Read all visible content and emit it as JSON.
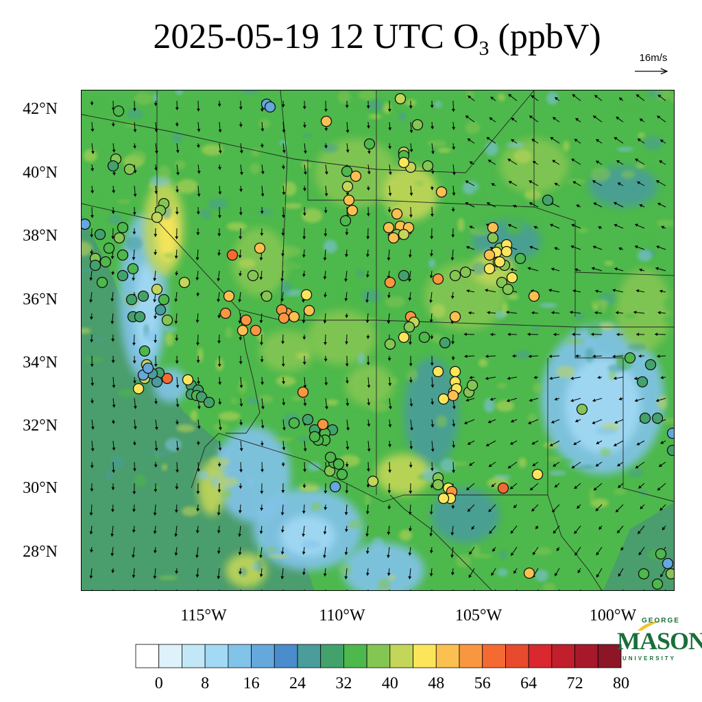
{
  "title": {
    "date_time": "2025-05-19 12 UTC O",
    "sub": "3",
    "units": " (ppbV)"
  },
  "wind_reference": {
    "label": "16m/s"
  },
  "axes": {
    "lat_labels": [
      "42°N",
      "40°N",
      "38°N",
      "36°N",
      "34°N",
      "32°N",
      "30°N",
      "28°N"
    ],
    "lon_labels": [
      "115°W",
      "110°W",
      "105°W",
      "100°W"
    ]
  },
  "colorbar": {
    "colors": [
      "#ffffff",
      "#dff2fb",
      "#c2e8f7",
      "#a2d9f4",
      "#82c3ea",
      "#64a8dc",
      "#4a8ccc",
      "#4a9d9a",
      "#43a26c",
      "#4db84b",
      "#84c653",
      "#c3d659",
      "#fbe65b",
      "#fbc04f",
      "#f99740",
      "#f56a33",
      "#e84a2e",
      "#d9282f",
      "#c11f2c",
      "#a7192a",
      "#8c1626"
    ],
    "tick_labels": [
      "0",
      "8",
      "16",
      "24",
      "32",
      "40",
      "48",
      "56",
      "64",
      "72",
      "80"
    ]
  },
  "logo": {
    "top": "GEORGE",
    "main": "MASON",
    "bottom": "UNIVERSITY",
    "color": "#1a6e3a"
  },
  "palette": {
    "ocean": "#4a9d6c",
    "land_base": "#4db84b",
    "high": "#84c653",
    "higher": "#c3d659",
    "peak": "#fbe65b",
    "low": "#82c3ea",
    "lower": "#a2d9f4",
    "lowest": "#c2e8f7",
    "mid": "#4a9d9a"
  }
}
